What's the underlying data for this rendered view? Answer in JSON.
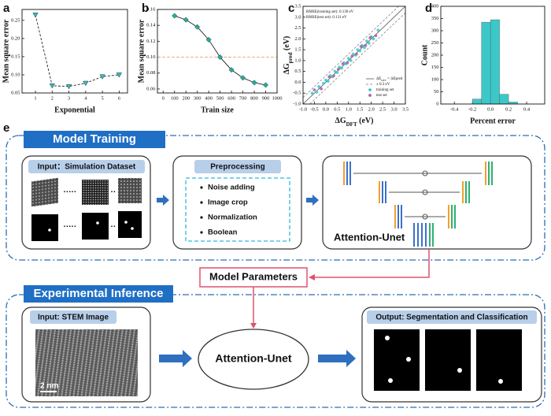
{
  "chart_data": [
    {
      "type": "line",
      "panel": "a",
      "xlabel": "Exponential",
      "ylabel": "Mean square error",
      "x": [
        1,
        2,
        3,
        4,
        5,
        6
      ],
      "values": [
        0.265,
        0.07,
        0.068,
        0.077,
        0.095,
        0.1
      ],
      "color": "#2fc0c0",
      "line_color": "#222222",
      "line_style": "dashed",
      "marker": "triangle-down",
      "xlim": [
        0.2,
        6.5
      ],
      "ylim": [
        0.05,
        0.28
      ],
      "xticks": [
        1,
        2,
        3,
        4,
        5,
        6
      ],
      "yticks": [
        0.05,
        {
          "value": 0.1,
          "label": "0.10"
        },
        0.15,
        {
          "value": 0.2,
          "label": "0.20"
        },
        0.25
      ]
    },
    {
      "type": "line",
      "panel": "b",
      "xlabel": "Train size",
      "ylabel": "Mean square error",
      "x": [
        100,
        200,
        300,
        400,
        500,
        600,
        700,
        800,
        900
      ],
      "values": [
        0.152,
        0.147,
        0.138,
        0.122,
        0.1,
        0.084,
        0.074,
        0.068,
        0.065
      ],
      "color": "#1fb09e",
      "line_color": "#222222",
      "line_style": "solid",
      "marker": "diamond",
      "reference_line": {
        "value": 0.1,
        "color": "#f0a060"
      },
      "xlim": [
        -50,
        1000
      ],
      "ylim": [
        0.055,
        0.16
      ],
      "xticks": [
        0,
        100,
        200,
        300,
        400,
        500,
        600,
        700,
        800,
        900,
        1000
      ],
      "yticks": [
        0.06,
        0.08,
        {
          "value": 0.1,
          "label": "0.10"
        },
        0.12,
        0.14,
        0.16
      ]
    },
    {
      "type": "scatter",
      "panel": "c",
      "xlabel": {
        "main": "ΔG",
        "sub": "DFT",
        "unit": " (eV)"
      },
      "ylabel": {
        "main": "ΔG",
        "sub": "pred",
        "unit": " (eV)"
      },
      "annotations": [
        "RMSE(training set): 0.130 eV",
        "RMSE(test set): 0.131 eV"
      ],
      "identity_line_label": {
        "main": "ΔE",
        "sub": "DFT",
        "rest": " = ΔEpred"
      },
      "band": 0.3,
      "band_label": "± 0.3 eV",
      "series": [
        {
          "name": "training set",
          "color": "#3cc8c8",
          "x": [
            -0.6,
            -0.4,
            -0.3,
            -0.1,
            0.0,
            0.1,
            0.2,
            0.3,
            0.4,
            0.5,
            0.6,
            0.7,
            0.8,
            0.9,
            1.0,
            1.1,
            1.2,
            1.3,
            1.4,
            1.5,
            1.6,
            1.7,
            1.8,
            1.9,
            2.0,
            2.1,
            2.3
          ],
          "values": [
            -0.5,
            -0.45,
            -0.2,
            -0.05,
            0.1,
            0.05,
            0.3,
            0.25,
            0.5,
            0.45,
            0.7,
            0.65,
            0.9,
            0.85,
            1.1,
            1.0,
            1.3,
            1.25,
            1.5,
            1.45,
            1.7,
            1.6,
            1.9,
            1.8,
            2.1,
            2.0,
            2.4
          ]
        },
        {
          "name": "test set",
          "color": "#b05ca8",
          "x": [
            -0.5,
            -0.2,
            0.15,
            0.35,
            0.55,
            0.75,
            0.95,
            1.15,
            1.35,
            1.55,
            1.75,
            1.95,
            2.2
          ],
          "values": [
            -0.35,
            -0.3,
            0.25,
            0.3,
            0.6,
            0.85,
            0.9,
            1.2,
            1.3,
            1.65,
            1.7,
            2.05,
            2.15
          ]
        }
      ],
      "xlim": [
        -1,
        3.5
      ],
      "ylim": [
        -1,
        3.5
      ],
      "xticks": [
        {
          "value": -1,
          "label": "-1.0"
        },
        -0.5,
        {
          "value": 0,
          "label": "0.0"
        },
        0.5,
        {
          "value": 1,
          "label": "1.0"
        },
        1.5,
        {
          "value": 2,
          "label": "2.0"
        },
        2.5,
        {
          "value": 3,
          "label": "3.0"
        },
        3.5
      ],
      "yticks": [
        {
          "value": -1,
          "label": "-1.0"
        },
        -0.5,
        {
          "value": 0,
          "label": "0.0"
        },
        0.5,
        {
          "value": 1,
          "label": "1.0"
        },
        1.5,
        {
          "value": 2,
          "label": "2.0"
        },
        2.5,
        {
          "value": 3,
          "label": "3.0"
        },
        3.5
      ]
    },
    {
      "type": "histogram",
      "panel": "d",
      "xlabel": "Percent error",
      "ylabel": "Count",
      "bins": [
        -0.2,
        -0.1,
        0.0,
        0.1,
        0.2,
        0.3
      ],
      "counts": [
        20,
        335,
        345,
        40,
        8
      ],
      "color": "#3cc8c8",
      "xlim": [
        -0.55,
        0.6
      ],
      "ylim": [
        0,
        400
      ],
      "xticks": [
        -0.4,
        -0.2,
        {
          "value": 0,
          "label": "0.0"
        },
        0.2,
        0.4
      ],
      "yticks": [
        0,
        50,
        100,
        150,
        200,
        250,
        300,
        350,
        400
      ]
    }
  ],
  "diagram": {
    "label": "e",
    "training": {
      "title": "Model Training",
      "input": "Input：Simulation Dataset",
      "preprocessing": {
        "title": "Preprocessing",
        "steps": [
          "Noise adding",
          "Image crop",
          "Normalization",
          "Boolean"
        ]
      },
      "model": "Attention-Unet"
    },
    "parameters": "Model Parameters",
    "inference": {
      "title": "Experimental Inference",
      "input": "Input: STEM Image",
      "scale_bar": "2 nm",
      "model": "Attention-Unet",
      "output": "Output: Segmentation and Classification"
    }
  }
}
